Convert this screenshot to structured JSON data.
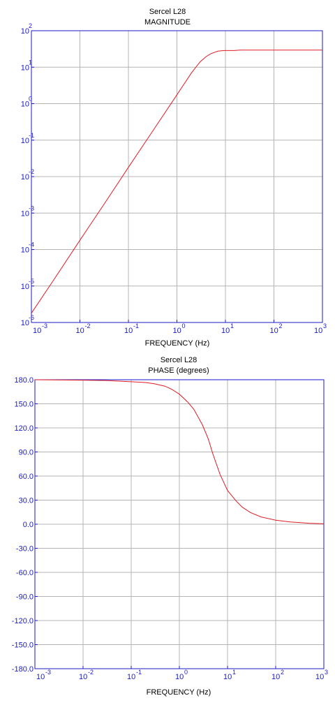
{
  "chart_data": [
    {
      "type": "line",
      "title": "Sercel L28",
      "subtitle": "MAGNITUDE",
      "xlabel": "FREQUENCY (Hz)",
      "ylabel": "",
      "xscale": "log",
      "yscale": "log",
      "xlim": [
        0.001,
        1000
      ],
      "ylim": [
        1e-06,
        100
      ],
      "grid": true,
      "x_ticks": [
        {
          "base": "10",
          "exp": "-3"
        },
        {
          "base": "10",
          "exp": "-2"
        },
        {
          "base": "10",
          "exp": "-1"
        },
        {
          "base": "10",
          "exp": "0"
        },
        {
          "base": "10",
          "exp": "1"
        },
        {
          "base": "10",
          "exp": "2"
        },
        {
          "base": "10",
          "exp": "3"
        }
      ],
      "y_ticks": [
        {
          "base": "10",
          "exp": "-6"
        },
        {
          "base": "10",
          "exp": "-5"
        },
        {
          "base": "10",
          "exp": "-4"
        },
        {
          "base": "10",
          "exp": "-3"
        },
        {
          "base": "10",
          "exp": "-2"
        },
        {
          "base": "10",
          "exp": "-1"
        },
        {
          "base": "10",
          "exp": "0"
        },
        {
          "base": "10",
          "exp": "1"
        },
        {
          "base": "10",
          "exp": "2"
        }
      ],
      "series": [
        {
          "color": "#e01b24",
          "x": [
            0.001,
            0.003,
            0.01,
            0.03,
            0.1,
            0.3,
            1,
            2,
            3,
            4,
            5,
            7,
            9,
            10,
            15,
            20,
            50,
            100,
            1000
          ],
          "y": [
            1.8e-06,
            1.6e-05,
            0.00018,
            0.0016,
            0.018,
            0.16,
            1.75,
            7,
            14,
            19.5,
            23.5,
            27.5,
            28.5,
            28.6,
            28.6,
            29.5,
            29.5,
            29.5,
            29.5
          ]
        }
      ]
    },
    {
      "type": "line",
      "title": "Sercel L28",
      "subtitle": "PHASE (degrees)",
      "xlabel": "FREQUENCY (Hz)",
      "ylabel": "",
      "xscale": "log",
      "yscale": "linear",
      "xlim": [
        0.001,
        1000
      ],
      "ylim": [
        -180,
        180
      ],
      "grid": true,
      "x_ticks": [
        {
          "base": "10",
          "exp": "-3"
        },
        {
          "base": "10",
          "exp": "-2"
        },
        {
          "base": "10",
          "exp": "-1"
        },
        {
          "base": "10",
          "exp": "0"
        },
        {
          "base": "10",
          "exp": "1"
        },
        {
          "base": "10",
          "exp": "2"
        },
        {
          "base": "10",
          "exp": "3"
        }
      ],
      "y_ticks": [
        "180.0",
        "150.0",
        "120.0",
        "90.0",
        "60.0",
        "30.0",
        "0.0",
        "-30.0",
        "-60.0",
        "-90.0",
        "-120.0",
        "-150.0",
        "-180.0"
      ],
      "series": [
        {
          "color": "#e01b24",
          "x": [
            0.001,
            0.01,
            0.03,
            0.1,
            0.2,
            0.3,
            0.5,
            0.7,
            1,
            1.5,
            2,
            3,
            4,
            5,
            7,
            10,
            15,
            20,
            30,
            50,
            100,
            200,
            500,
            1000
          ],
          "y": [
            180,
            179.5,
            179,
            177.5,
            176.5,
            175,
            172,
            168,
            162,
            152,
            143,
            124,
            106,
            87,
            62,
            42,
            29,
            21.5,
            14.5,
            9,
            5,
            2.8,
            1.2,
            0.5
          ]
        }
      ]
    }
  ]
}
